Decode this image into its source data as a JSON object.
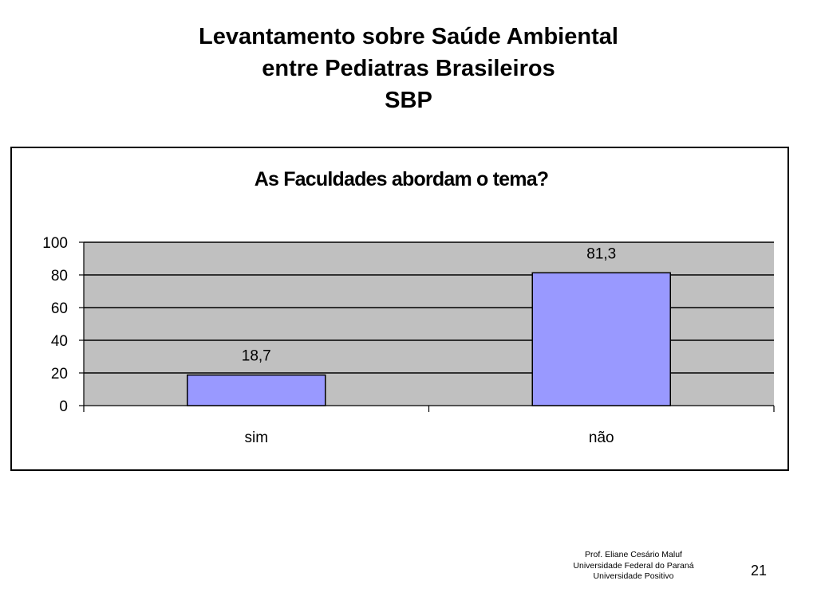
{
  "slide": {
    "title_lines": [
      "Levantamento sobre Saúde Ambiental",
      "entre Pediatras Brasileiros",
      "SBP"
    ],
    "footer": {
      "lines": [
        "Prof. Eliane Cesário Maluf",
        "Universidade Federal do Paraná",
        "Universidade Positivo"
      ],
      "page_number": "21"
    }
  },
  "chart_data": {
    "type": "bar",
    "title": "As Faculdades abordam o tema?",
    "categories": [
      "sim",
      "não"
    ],
    "values": [
      18.7,
      81.3
    ],
    "data_labels": [
      "18,7",
      "81,3"
    ],
    "ylim": [
      0,
      100
    ],
    "yticks": [
      0,
      20,
      40,
      60,
      80,
      100
    ],
    "xlabel": "",
    "ylabel": "",
    "grid": true,
    "legend": "none",
    "colors": {
      "bar_fill": "#9999FF",
      "plot_background": "#C0C0C0",
      "gridline": "#000000"
    }
  }
}
